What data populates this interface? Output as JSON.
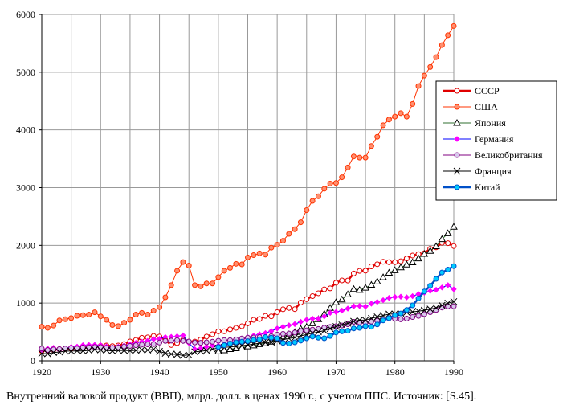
{
  "chart_data": {
    "type": "line",
    "note": "Внутренний валовой продукт (ВВП), млрд. долл. в ценах 1990 г., с учетом ППС. Источник: [S.45].",
    "x": [
      1920,
      1921,
      1922,
      1923,
      1924,
      1925,
      1926,
      1927,
      1928,
      1929,
      1930,
      1931,
      1932,
      1933,
      1934,
      1935,
      1936,
      1937,
      1938,
      1939,
      1940,
      1941,
      1942,
      1943,
      1944,
      1945,
      1946,
      1947,
      1948,
      1949,
      1950,
      1951,
      1952,
      1953,
      1954,
      1955,
      1956,
      1957,
      1958,
      1959,
      1960,
      1961,
      1962,
      1963,
      1964,
      1965,
      1966,
      1967,
      1968,
      1969,
      1970,
      1971,
      1972,
      1973,
      1974,
      1975,
      1976,
      1977,
      1978,
      1979,
      1980,
      1981,
      1982,
      1983,
      1984,
      1985,
      1986,
      1987,
      1988,
      1989,
      1990
    ],
    "xlim": [
      1920,
      1990
    ],
    "xticks": [
      1920,
      1930,
      1940,
      1950,
      1960,
      1970,
      1980,
      1990
    ],
    "x_grid": [
      1920,
      1925,
      1930,
      1935,
      1940,
      1945,
      1950,
      1955,
      1960,
      1965,
      1970,
      1975,
      1980,
      1985,
      1990
    ],
    "ylim": [
      0,
      6000
    ],
    "yticks": [
      0,
      1000,
      2000,
      3000,
      4000,
      5000,
      6000
    ],
    "grid": true,
    "legend": "right",
    "series": [
      {
        "name": "СССР",
        "color": "#e00000",
        "width": 2.5,
        "marker": "circle",
        "marker_color": "#ffffff",
        "values": [
          170,
          180,
          190,
          200,
          205,
          210,
          220,
          226,
          232,
          250,
          260,
          264,
          254,
          264,
          291,
          334,
          361,
          398,
          406,
          430,
          420,
          359,
          274,
          306,
          362,
          333,
          332,
          368,
          420,
          460,
          510,
          512,
          545,
          570,
          598,
          648,
          710,
          724,
          778,
          770,
          843,
          892,
          915,
          895,
          1010,
          1068,
          1120,
          1170,
          1238,
          1255,
          1352,
          1392,
          1390,
          1513,
          1557,
          1561,
          1635,
          1673,
          1715,
          1708,
          1709,
          1724,
          1773,
          1823,
          1848,
          1863,
          1940,
          1966,
          2044,
          2037,
          1988
        ]
      },
      {
        "name": "США",
        "color": "#ff3300",
        "width": 1,
        "marker": "circle",
        "marker_color": "#ff9070",
        "values": [
          590,
          570,
          610,
          700,
          720,
          740,
          780,
          790,
          800,
          840,
          770,
          710,
          620,
          600,
          660,
          710,
          800,
          830,
          800,
          870,
          930,
          1100,
          1310,
          1560,
          1710,
          1650,
          1310,
          1290,
          1340,
          1340,
          1450,
          1560,
          1610,
          1680,
          1670,
          1790,
          1830,
          1860,
          1840,
          1960,
          2010,
          2080,
          2200,
          2280,
          2400,
          2610,
          2770,
          2850,
          2980,
          3070,
          3080,
          3180,
          3350,
          3540,
          3520,
          3520,
          3720,
          3880,
          4080,
          4180,
          4230,
          4290,
          4230,
          4450,
          4760,
          4940,
          5090,
          5260,
          5470,
          5640,
          5800
        ]
      },
      {
        "name": "Япония",
        "color": "#2f6f2f",
        "width": 1,
        "marker": "triangle",
        "marker_color": "#ffffff",
        "values": [
          null,
          null,
          null,
          null,
          null,
          null,
          null,
          null,
          null,
          null,
          null,
          null,
          null,
          null,
          null,
          null,
          null,
          null,
          null,
          null,
          null,
          null,
          null,
          null,
          null,
          null,
          null,
          null,
          null,
          null,
          161,
          181,
          202,
          216,
          229,
          249,
          267,
          287,
          303,
          331,
          376,
          420,
          457,
          496,
          554,
          586,
          649,
          721,
          813,
          915,
          1013,
          1061,
          1150,
          1243,
          1227,
          1265,
          1315,
          1373,
          1446,
          1525,
          1568,
          1618,
          1667,
          1706,
          1773,
          1851,
          1904,
          1984,
          2107,
          2208,
          2321
        ]
      },
      {
        "name": "Германия",
        "color": "#0000ff",
        "width": 1,
        "marker": "diamond",
        "marker_color": "#ff00ff",
        "values": [
          190,
          210,
          225,
          185,
          215,
          240,
          245,
          270,
          275,
          275,
          270,
          250,
          230,
          245,
          265,
          285,
          310,
          330,
          345,
          375,
          380,
          410,
          415,
          425,
          440,
          310,
          200,
          215,
          245,
          270,
          265,
          290,
          315,
          340,
          365,
          405,
          435,
          460,
          480,
          515,
          560,
          590,
          615,
          635,
          675,
          710,
          730,
          730,
          770,
          830,
          845,
          870,
          905,
          945,
          950,
          940,
          990,
          1020,
          1050,
          1090,
          1105,
          1110,
          1100,
          1120,
          1155,
          1180,
          1210,
          1230,
          1270,
          1310,
          1240
        ]
      },
      {
        "name": "Великобритания",
        "color": "#800080",
        "width": 1,
        "marker": "circle",
        "marker_color": "#d8c8ec",
        "values": [
          212,
          187,
          197,
          203,
          212,
          222,
          213,
          230,
          233,
          238,
          237,
          224,
          225,
          232,
          248,
          258,
          269,
          281,
          285,
          288,
          316,
          345,
          350,
          358,
          345,
          332,
          317,
          311,
          320,
          330,
          347,
          358,
          357,
          371,
          386,
          400,
          404,
          411,
          410,
          427,
          452,
          467,
          471,
          489,
          516,
          528,
          540,
          552,
          575,
          587,
          599,
          611,
          633,
          675,
          665,
          661,
          679,
          695,
          719,
          738,
          728,
          718,
          731,
          758,
          777,
          807,
          842,
          880,
          923,
          942,
          944
        ]
      },
      {
        "name": "Франция",
        "color": "#000000",
        "width": 1,
        "marker": "x",
        "marker_color": "#000000",
        "values": [
          128,
          122,
          144,
          152,
          168,
          168,
          172,
          171,
          181,
          195,
          189,
          183,
          170,
          180,
          179,
          175,
          181,
          191,
          186,
          199,
          164,
          130,
          117,
          110,
          93,
          102,
          155,
          166,
          178,
          203,
          220,
          234,
          241,
          248,
          261,
          275,
          289,
          307,
          315,
          324,
          344,
          363,
          387,
          406,
          433,
          454,
          478,
          500,
          522,
          559,
          593,
          622,
          650,
          684,
          705,
          704,
          735,
          760,
          784,
          809,
          813,
          822,
          842,
          848,
          859,
          875,
          896,
          918,
          960,
          1000,
          1026
        ]
      },
      {
        "name": "Китай",
        "color": "#0050c8",
        "width": 2.5,
        "marker": "circle",
        "marker_color": "#00ccff",
        "values": [
          null,
          null,
          null,
          null,
          null,
          null,
          null,
          null,
          null,
          null,
          null,
          null,
          null,
          null,
          null,
          null,
          null,
          null,
          null,
          null,
          null,
          null,
          null,
          null,
          null,
          null,
          null,
          null,
          null,
          null,
          240,
          270,
          300,
          320,
          330,
          340,
          360,
          370,
          410,
          400,
          390,
          310,
          300,
          320,
          350,
          390,
          420,
          400,
          390,
          430,
          490,
          510,
          520,
          560,
          570,
          600,
          590,
          630,
          700,
          740,
          790,
          820,
          880,
          960,
          1080,
          1200,
          1300,
          1420,
          1530,
          1580,
          1640
        ]
      }
    ]
  }
}
